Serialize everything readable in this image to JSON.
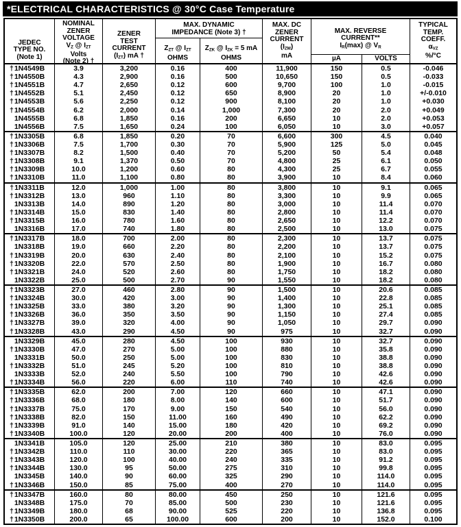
{
  "title": "*ELECTRICAL CHARACTERISTICS @ 30°C Case Temperature",
  "table": {
    "header": {
      "jedec": [
        "JEDEC",
        "TYPE NO.",
        "(Note 1)"
      ],
      "voltage": [
        "NOMINAL",
        "ZENER",
        "VOLTAGE",
        "V~Z~ @ I~ZT~",
        "Volts",
        "(Note 2) †"
      ],
      "test_current": [
        "ZENER",
        "TEST",
        "CURRENT",
        "(I~ZT~) mA †"
      ],
      "impedance_group": [
        "MAX. DYNAMIC",
        "IMPEDANCE (Note 3) †"
      ],
      "zzt": [
        "Z~ZT~ @ I~ZT~",
        "OHMS"
      ],
      "zzk": [
        "Z~ZK~ @ I~ZK~ = 5 mA",
        "OHMS"
      ],
      "izm": [
        "MAX. DC",
        "ZENER",
        "CURRENT",
        "(I~ZM~)",
        "mA"
      ],
      "reverse_group": [
        "MAX. REVERSE",
        "CURRENT**",
        "I~R~(max) @ V~R~"
      ],
      "ua": "µA",
      "volts": "VOLTS",
      "temp_coeff": [
        "TYPICAL",
        "TEMP.",
        "COEFF.",
        "α~VZ~",
        "%/°C"
      ]
    },
    "columns": [
      "jedec_type",
      "nominal_voltage",
      "test_current",
      "zzt_ohms",
      "zzk_ohms",
      "max_dc_current",
      "reverse_ua",
      "reverse_volts",
      "temp_coeff"
    ],
    "groups": [
      [
        [
          "†1N4549B",
          "3.9",
          "3,200",
          "0.16",
          "400",
          "11,900",
          "150",
          "0.5",
          "-0.046"
        ],
        [
          "†1N4550B",
          "4.3",
          "2,900",
          "0.16",
          "500",
          "10,650",
          "150",
          "0.5",
          "-0.033"
        ],
        [
          "†1N4551B",
          "4.7",
          "2,650",
          "0.12",
          "600",
          "9,700",
          "100",
          "1.0",
          "-0.015"
        ],
        [
          "†1N4552B",
          "5.1",
          "2,450",
          "0.12",
          "650",
          "8,900",
          "20",
          "1.0",
          "+/-0.010"
        ],
        [
          "†1N4553B",
          "5.6",
          "2,250",
          "0.12",
          "900",
          "8,100",
          "20",
          "1.0",
          "+0.030"
        ],
        [
          "†1N4554B",
          "6.2",
          "2,000",
          "0.14",
          "1,000",
          "7,300",
          "20",
          "2.0",
          "+0.049"
        ],
        [
          "1N4555B",
          "6.8",
          "1,850",
          "0.16",
          "200",
          "6,650",
          "10",
          "2.0",
          "+0.053"
        ],
        [
          "1N4556B",
          "7.5",
          "1,650",
          "0.24",
          "100",
          "6,050",
          "10",
          "3.0",
          "+0.057"
        ]
      ],
      [
        [
          "†1N3305B",
          "6.8",
          "1,850",
          "0.20",
          "70",
          "6,600",
          "300",
          "4.5",
          "0.040"
        ],
        [
          "†1N3306B",
          "7.5",
          "1,700",
          "0.30",
          "70",
          "5,900",
          "125",
          "5.0",
          "0.045"
        ],
        [
          "†1N3307B",
          "8.2",
          "1,500",
          "0.40",
          "70",
          "5,200",
          "50",
          "5.4",
          "0.048"
        ],
        [
          "†1N3308B",
          "9.1",
          "1,370",
          "0.50",
          "70",
          "4,800",
          "25",
          "6.1",
          "0.050"
        ],
        [
          "†1N3309B",
          "10.0",
          "1,200",
          "0.60",
          "80",
          "4,300",
          "25",
          "6.7",
          "0.055"
        ],
        [
          "†1N3310B",
          "11.0",
          "1,100",
          "0.80",
          "80",
          "3,900",
          "10",
          "8.4",
          "0.060"
        ]
      ],
      [
        [
          "†1N3311B",
          "12.0",
          "1,000",
          "1.00",
          "80",
          "3,800",
          "10",
          "9.1",
          "0.065"
        ],
        [
          "†1N3312B",
          "13.0",
          "960",
          "1.10",
          "80",
          "3,300",
          "10",
          "9.9",
          "0.065"
        ],
        [
          "1N3313B",
          "14.0",
          "890",
          "1.20",
          "80",
          "3,000",
          "10",
          "11.4",
          "0.070"
        ],
        [
          "†1N3314B",
          "15.0",
          "830",
          "1.40",
          "80",
          "2,800",
          "10",
          "11.4",
          "0.070"
        ],
        [
          "†1N3315B",
          "16.0",
          "780",
          "1.60",
          "80",
          "2,650",
          "10",
          "12.2",
          "0.070"
        ],
        [
          "1N3316B",
          "17.0",
          "740",
          "1.80",
          "80",
          "2,500",
          "10",
          "13.0",
          "0.075"
        ]
      ],
      [
        [
          "†1N3317B",
          "18.0",
          "700",
          "2.00",
          "80",
          "2,300",
          "10",
          "13.7",
          "0.075"
        ],
        [
          "1N3318B",
          "19.0",
          "660",
          "2.20",
          "80",
          "2,200",
          "10",
          "13.7",
          "0.075"
        ],
        [
          "†1N3319B",
          "20.0",
          "630",
          "2.40",
          "80",
          "2,100",
          "10",
          "15.2",
          "0.075"
        ],
        [
          "†1N3320B",
          "22.0",
          "570",
          "2.50",
          "80",
          "1,900",
          "10",
          "16.7",
          "0.080"
        ],
        [
          "†1N3321B",
          "24.0",
          "520",
          "2.60",
          "80",
          "1,750",
          "10",
          "18.2",
          "0.080"
        ],
        [
          "1N3322B",
          "25.0",
          "500",
          "2.70",
          "90",
          "1,550",
          "10",
          "18.2",
          "0.080"
        ]
      ],
      [
        [
          "†1N3323B",
          "27.0",
          "460",
          "2.80",
          "90",
          "1,500",
          "10",
          "20.6",
          "0.085"
        ],
        [
          "†1N3324B",
          "30.0",
          "420",
          "3.00",
          "90",
          "1,400",
          "10",
          "22.8",
          "0.085"
        ],
        [
          "†1N3325B",
          "33.0",
          "380",
          "3.20",
          "90",
          "1,300",
          "10",
          "25.1",
          "0.085"
        ],
        [
          "†1N3326B",
          "36.0",
          "350",
          "3.50",
          "90",
          "1,150",
          "10",
          "27.4",
          "0.085"
        ],
        [
          "†1N3327B",
          "39.0",
          "320",
          "4.00",
          "90",
          "1,050",
          "10",
          "29.7",
          "0.090"
        ],
        [
          "†1N3328B",
          "43.0",
          "290",
          "4.50",
          "90",
          "975",
          "10",
          "32.7",
          "0.090"
        ]
      ],
      [
        [
          "1N3329B",
          "45.0",
          "280",
          "4.50",
          "100",
          "930",
          "10",
          "32.7",
          "0.090"
        ],
        [
          "†1N3330B",
          "47.0",
          "270",
          "5.00",
          "100",
          "880",
          "10",
          "35.8",
          "0.090"
        ],
        [
          "1N3331B",
          "50.0",
          "250",
          "5.00",
          "100",
          "830",
          "10",
          "38.8",
          "0.090"
        ],
        [
          "†1N3332B",
          "51.0",
          "245",
          "5.20",
          "100",
          "810",
          "10",
          "38.8",
          "0.090"
        ],
        [
          "1N3333B",
          "52.0",
          "240",
          "5.50",
          "100",
          "790",
          "10",
          "42.6",
          "0.090"
        ],
        [
          "†1N3334B",
          "56.0",
          "220",
          "6.00",
          "110",
          "740",
          "10",
          "42.6",
          "0.090"
        ]
      ],
      [
        [
          "†1N3335B",
          "62.0",
          "200",
          "7.00",
          "120",
          "660",
          "10",
          "47.1",
          "0.090"
        ],
        [
          "†1N3336B",
          "68.0",
          "180",
          "8.00",
          "140",
          "600",
          "10",
          "51.7",
          "0.090"
        ],
        [
          "†1N3337B",
          "75.0",
          "170",
          "9.00",
          "150",
          "540",
          "10",
          "56.0",
          "0.090"
        ],
        [
          "†1N3338B",
          "82.0",
          "150",
          "11.00",
          "160",
          "490",
          "10",
          "62.2",
          "0.090"
        ],
        [
          "†1N3339B",
          "91.0",
          "140",
          "15.00",
          "180",
          "420",
          "10",
          "69.2",
          "0.090"
        ],
        [
          "†1N3340B",
          "100.0",
          "120",
          "20.00",
          "200",
          "400",
          "10",
          "76.0",
          "0.090"
        ]
      ],
      [
        [
          "1N3341B",
          "105.0",
          "120",
          "25.00",
          "210",
          "380",
          "10",
          "83.0",
          "0.095"
        ],
        [
          "†1N3342B",
          "110.0",
          "110",
          "30.00",
          "220",
          "365",
          "10",
          "83.0",
          "0.095"
        ],
        [
          "†1N3343B",
          "120.0",
          "100",
          "40.00",
          "240",
          "335",
          "10",
          "91.2",
          "0.095"
        ],
        [
          "†1N3344B",
          "130.0",
          "95",
          "50.00",
          "275",
          "310",
          "10",
          "99.8",
          "0.095"
        ],
        [
          "1N3345B",
          "140.0",
          "90",
          "60.00",
          "325",
          "290",
          "10",
          "114.0",
          "0.095"
        ],
        [
          "†1N3346B",
          "150.0",
          "85",
          "75.00",
          "400",
          "270",
          "10",
          "114.0",
          "0.095"
        ]
      ],
      [
        [
          "†1N3347B",
          "160.0",
          "80",
          "80.00",
          "450",
          "250",
          "10",
          "121.6",
          "0.095"
        ],
        [
          "1N3348B",
          "175.0",
          "70",
          "85.00",
          "500",
          "230",
          "10",
          "121.6",
          "0.095"
        ],
        [
          "†1N3349B",
          "180.0",
          "68",
          "90.00",
          "525",
          "220",
          "10",
          "136.8",
          "0.095"
        ],
        [
          "†1N3350B",
          "200.0",
          "65",
          "100.00",
          "600",
          "200",
          "10",
          "152.0",
          "0.100"
        ]
      ]
    ]
  }
}
